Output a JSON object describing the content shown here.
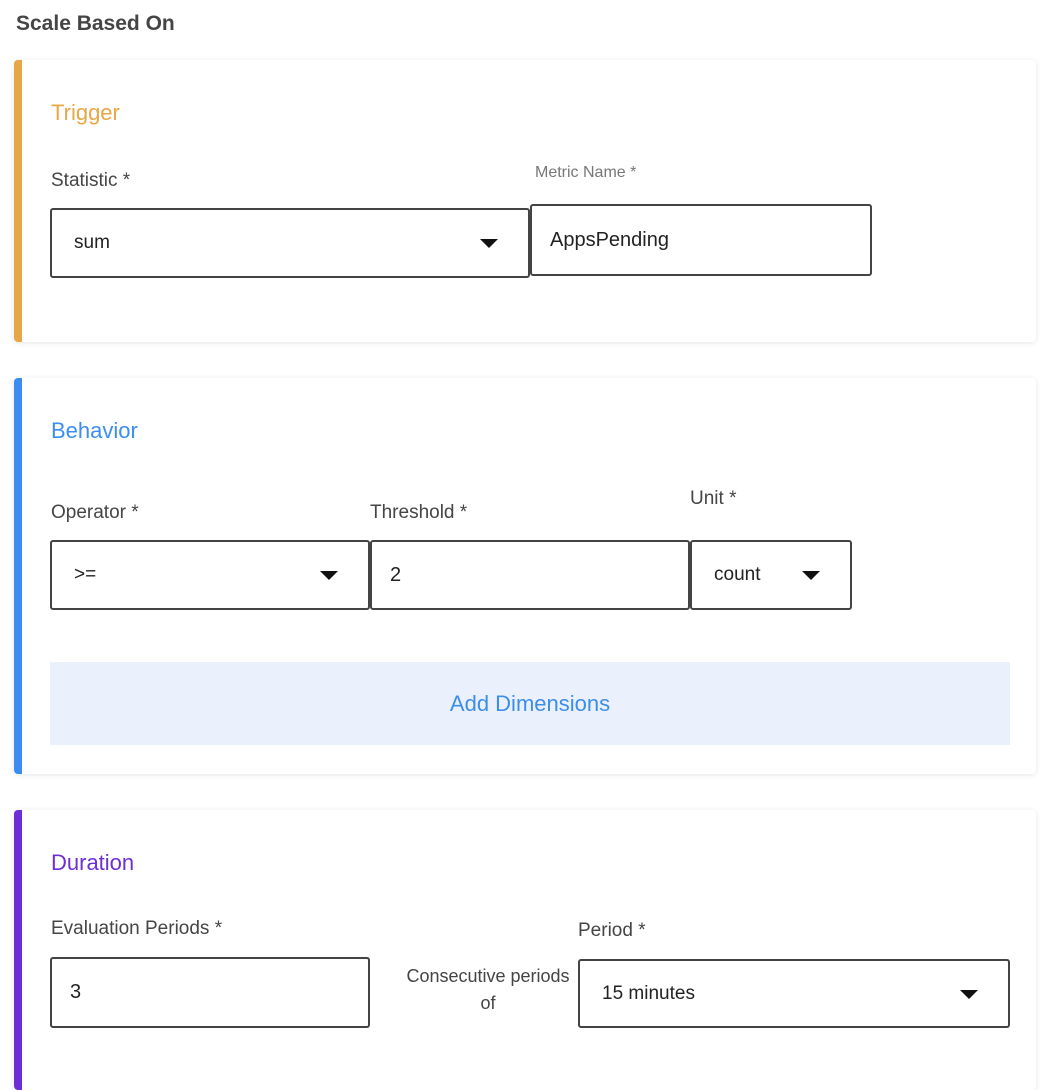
{
  "heading": "Scale Based On",
  "colors": {
    "trigger": "#E8A746",
    "behavior": "#3B8EF0",
    "duration": "#6D2FD5",
    "add_dimensions_bg": "#EAF1FD"
  },
  "trigger": {
    "title": "Trigger",
    "statistic_label": "Statistic *",
    "statistic_value": "sum",
    "metric_name_label": "Metric Name *",
    "metric_name_value": "AppsPending"
  },
  "behavior": {
    "title": "Behavior",
    "operator_label": "Operator *",
    "operator_value": ">=",
    "threshold_label": "Threshold *",
    "threshold_value": "2",
    "unit_label": "Unit *",
    "unit_value": "count",
    "add_dimensions": "Add Dimensions"
  },
  "duration": {
    "title": "Duration",
    "evaluation_periods_label": "Evaluation Periods *",
    "evaluation_periods_value": "3",
    "consecutive_line1": "Consecutive periods",
    "consecutive_line2": "of",
    "period_label": "Period *",
    "period_value": "15 minutes"
  }
}
